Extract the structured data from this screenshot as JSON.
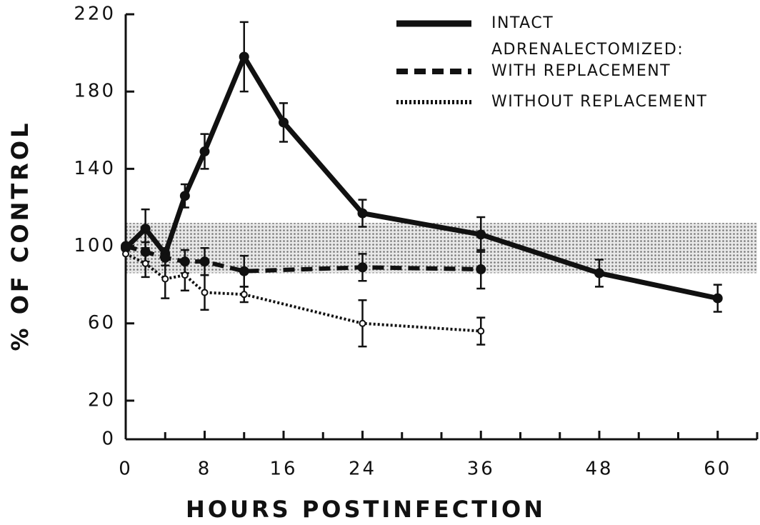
{
  "chart_data": {
    "type": "line",
    "xlabel": "HOURS POSTINFECTION",
    "ylabel": "% OF CONTROL",
    "xlim": [
      0,
      64
    ],
    "xticks": [
      0,
      8,
      16,
      24,
      36,
      48,
      60
    ],
    "xticks_minor": [
      4,
      12,
      20,
      28,
      32,
      40,
      44,
      52,
      56,
      64
    ],
    "ylim": [
      0,
      220
    ],
    "yticks": [
      0,
      20,
      60,
      100,
      140,
      180,
      220
    ],
    "band": [
      86,
      112
    ],
    "legend_subtitle": "ADRENALECTOMIZED:",
    "legend": "upper right",
    "series": [
      {
        "name": "INTACT",
        "color": "#111111",
        "dash": "solid",
        "marker": "filled",
        "x": [
          0,
          2,
          4,
          6,
          8,
          12,
          16,
          24,
          36,
          48,
          60
        ],
        "values": [
          99,
          109,
          96,
          126,
          149,
          198,
          164,
          117,
          106,
          86,
          73
        ],
        "errors": [
          0,
          10,
          3,
          6,
          9,
          18,
          10,
          7,
          9,
          7,
          7
        ]
      },
      {
        "name": "WITH REPLACEMENT",
        "color": "#111111",
        "dash": "dashed",
        "marker": "filled",
        "x": [
          0,
          2,
          4,
          6,
          8,
          12,
          24,
          36
        ],
        "values": [
          100,
          97,
          94,
          92,
          92,
          87,
          89,
          88
        ],
        "errors": [
          0,
          5,
          4,
          6,
          7,
          8,
          7,
          10
        ]
      },
      {
        "name": "WITHOUT REPLACEMENT",
        "color": "#111111",
        "dash": "dotted",
        "marker": "open",
        "x": [
          0,
          2,
          4,
          6,
          8,
          12,
          24,
          36
        ],
        "values": [
          96,
          91,
          83,
          85,
          76,
          75,
          60,
          56
        ],
        "errors": [
          0,
          7,
          10,
          8,
          9,
          4,
          12,
          7
        ]
      }
    ]
  }
}
